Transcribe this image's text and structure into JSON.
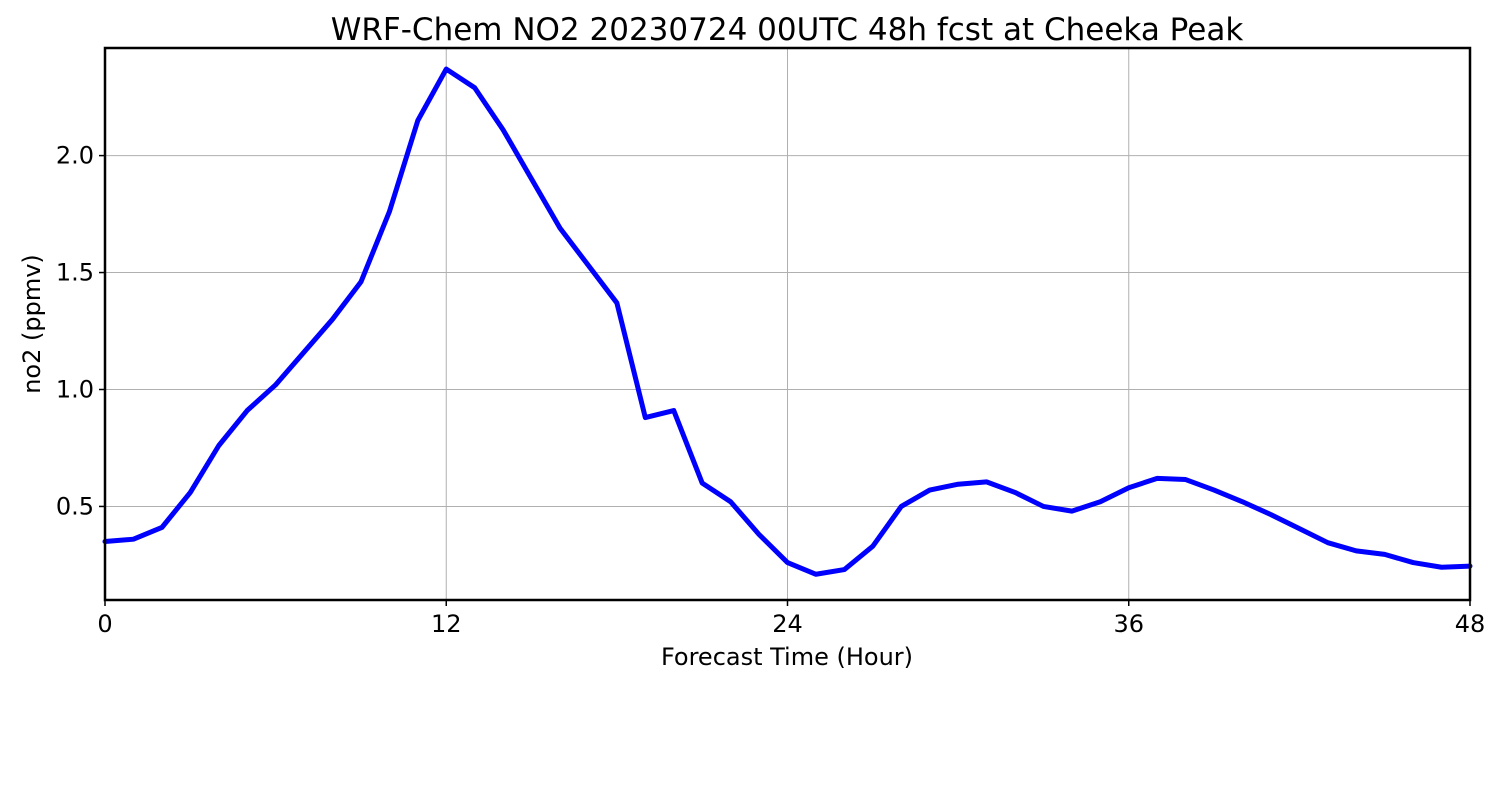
{
  "chart_data": {
    "type": "line",
    "title": "WRF-Chem NO2  20230724 00UTC 48h fcst at Cheeka Peak",
    "xlabel": "Forecast Time (Hour)",
    "ylabel": "no2  (ppmv)",
    "xlim": [
      0,
      48
    ],
    "ylim": [
      0.1,
      2.46
    ],
    "xticks": [
      0,
      12,
      24,
      36,
      48
    ],
    "xtick_labels": [
      "0",
      "12",
      "24",
      "36",
      "48"
    ],
    "yticks": [
      0.5,
      1.0,
      1.5,
      2.0
    ],
    "ytick_labels": [
      "0.5",
      "1.0",
      "1.5",
      "2.0"
    ],
    "grid": true,
    "series": [
      {
        "color": "#0000ff",
        "x": [
          0,
          1,
          2,
          3,
          4,
          5,
          6,
          7,
          8,
          9,
          10,
          11,
          12,
          13,
          14,
          15,
          16,
          17,
          18,
          19,
          20,
          21,
          22,
          23,
          24,
          25,
          26,
          27,
          28,
          29,
          30,
          31,
          32,
          33,
          34,
          35,
          36,
          37,
          38,
          39,
          40,
          41,
          42,
          43,
          44,
          45,
          46,
          47,
          48
        ],
        "values": [
          0.35,
          0.36,
          0.41,
          0.56,
          0.76,
          0.91,
          1.02,
          1.16,
          1.3,
          1.46,
          1.76,
          2.15,
          2.37,
          2.29,
          2.11,
          1.9,
          1.69,
          1.53,
          1.37,
          0.88,
          0.91,
          0.6,
          0.52,
          0.38,
          0.26,
          0.21,
          0.23,
          0.33,
          0.5,
          0.57,
          0.595,
          0.605,
          0.56,
          0.5,
          0.48,
          0.52,
          0.58,
          0.62,
          0.615,
          0.57,
          0.52,
          0.465,
          0.405,
          0.345,
          0.31,
          0.295,
          0.26,
          0.24,
          0.245
        ]
      }
    ]
  }
}
